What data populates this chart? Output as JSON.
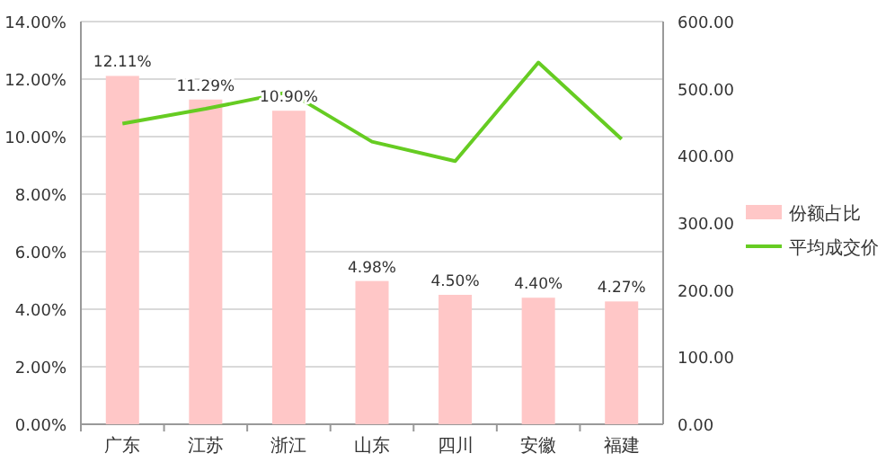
{
  "chart_data": {
    "type": "bar",
    "categories": [
      "广东",
      "江苏",
      "浙江",
      "山东",
      "四川",
      "安徽",
      "福建"
    ],
    "series": [
      {
        "name": "份额占比",
        "color": "#ffc7c7",
        "values": [
          12.11,
          11.29,
          10.9,
          4.98,
          4.5,
          4.4,
          4.27
        ],
        "value_labels": [
          "12.11%",
          "11.29%",
          "10.90%",
          "4.98%",
          "4.50%",
          "4.40%",
          "4.27%"
        ]
      },
      {
        "name": "平均成交价",
        "type": "line",
        "axis": "y2",
        "color": "#66cc22",
        "values": [
          448,
          470,
          495,
          421,
          392,
          539,
          425
        ]
      }
    ],
    "ylim": [
      0,
      14
    ],
    "yticks": [
      {
        "value": 0,
        "label": "0.00%"
      },
      {
        "value": 2,
        "label": "2.00%"
      },
      {
        "value": 4,
        "label": "4.00%"
      },
      {
        "value": 6,
        "label": "6.00%"
      },
      {
        "value": 8,
        "label": "8.00%"
      },
      {
        "value": 10,
        "label": "10.00%"
      },
      {
        "value": 12,
        "label": "12.00%"
      },
      {
        "value": 14,
        "label": "14.00%"
      }
    ],
    "y2lim": [
      0,
      600
    ],
    "y2ticks": [
      {
        "value": 0,
        "label": "0.00"
      },
      {
        "value": 100,
        "label": "100.00"
      },
      {
        "value": 200,
        "label": "200.00"
      },
      {
        "value": 300,
        "label": "300.00"
      },
      {
        "value": 400,
        "label": "400.00"
      },
      {
        "value": 500,
        "label": "500.00"
      },
      {
        "value": 600,
        "label": "600.00"
      }
    ],
    "grid": "y",
    "legend": "right"
  }
}
